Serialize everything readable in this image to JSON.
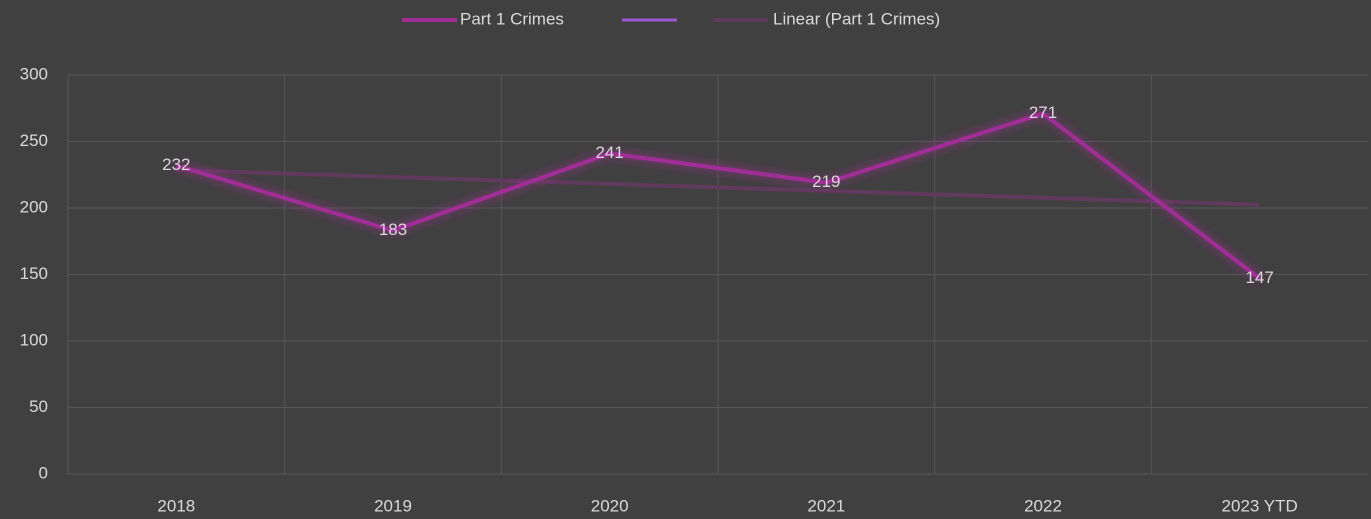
{
  "chart_data": {
    "type": "line",
    "categories": [
      "2018",
      "2019",
      "2020",
      "2021",
      "2022",
      "2023 YTD"
    ],
    "series": [
      {
        "name": "Part 1 Crimes",
        "color": "#a12d96",
        "values": [
          232,
          183,
          241,
          219,
          271,
          147
        ]
      },
      {
        "name": "Linear (Part 1 Crimes)",
        "color": "#5f3a5c",
        "values": [
          228.6,
          223.3,
          218.1,
          212.9,
          207.7,
          202.4
        ]
      }
    ],
    "data_labels_series": 0,
    "ylim": [
      0,
      300
    ],
    "yticks": [
      0,
      50,
      100,
      150,
      200,
      250,
      300
    ],
    "grid": true,
    "legend": "top"
  }
}
